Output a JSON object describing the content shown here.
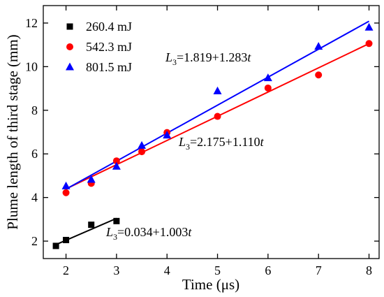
{
  "chart_data": {
    "type": "scatter",
    "title": "",
    "xlabel": "Time (μs)",
    "ylabel": "Plume length of third stage (mm)",
    "xlim": [
      1.55,
      8.2
    ],
    "ylim": [
      1.2,
      12.8
    ],
    "xticks": [
      2,
      3,
      4,
      5,
      6,
      7,
      8
    ],
    "yticks": [
      2,
      4,
      6,
      8,
      10,
      12
    ],
    "grid": false,
    "legend_position": "top-left",
    "series": [
      {
        "name": "260.4 mJ",
        "marker": "square",
        "color": "#000000",
        "points": [
          [
            1.8,
            1.78
          ],
          [
            2.0,
            2.05
          ],
          [
            2.5,
            2.75
          ],
          [
            3.0,
            2.92
          ]
        ],
        "fit": {
          "intercept": 0.034,
          "slope": 1.003,
          "x_range": [
            1.8,
            3.0
          ]
        },
        "equation": {
          "prefix": "=0.034+1.003",
          "var": "t"
        }
      },
      {
        "name": "542.3 mJ",
        "marker": "circle",
        "color": "#ff0000",
        "points": [
          [
            2.0,
            4.22
          ],
          [
            2.5,
            4.65
          ],
          [
            3.0,
            5.68
          ],
          [
            3.5,
            6.1
          ],
          [
            4.0,
            6.98
          ],
          [
            5.0,
            7.72
          ],
          [
            6.0,
            9.02
          ],
          [
            7.0,
            9.62
          ],
          [
            8.0,
            11.06
          ]
        ],
        "fit": {
          "intercept": 2.175,
          "slope": 1.11,
          "x_range": [
            2.0,
            8.0
          ]
        },
        "equation": {
          "prefix": "=2.175+1.110",
          "var": "t"
        }
      },
      {
        "name": "801.5 mJ",
        "marker": "triangle",
        "color": "#0000ff",
        "points": [
          [
            2.0,
            4.52
          ],
          [
            2.5,
            4.82
          ],
          [
            3.0,
            5.42
          ],
          [
            3.5,
            6.38
          ],
          [
            4.0,
            6.85
          ],
          [
            5.0,
            8.88
          ],
          [
            6.0,
            9.48
          ],
          [
            7.0,
            10.92
          ],
          [
            8.0,
            11.8
          ]
        ],
        "fit": {
          "intercept": 1.819,
          "slope": 1.283,
          "x_range": [
            2.0,
            8.0
          ]
        },
        "equation": {
          "prefix": "=1.819+1.283",
          "var": "t"
        }
      }
    ],
    "equation_symbol": "L",
    "equation_subscript": "3"
  }
}
